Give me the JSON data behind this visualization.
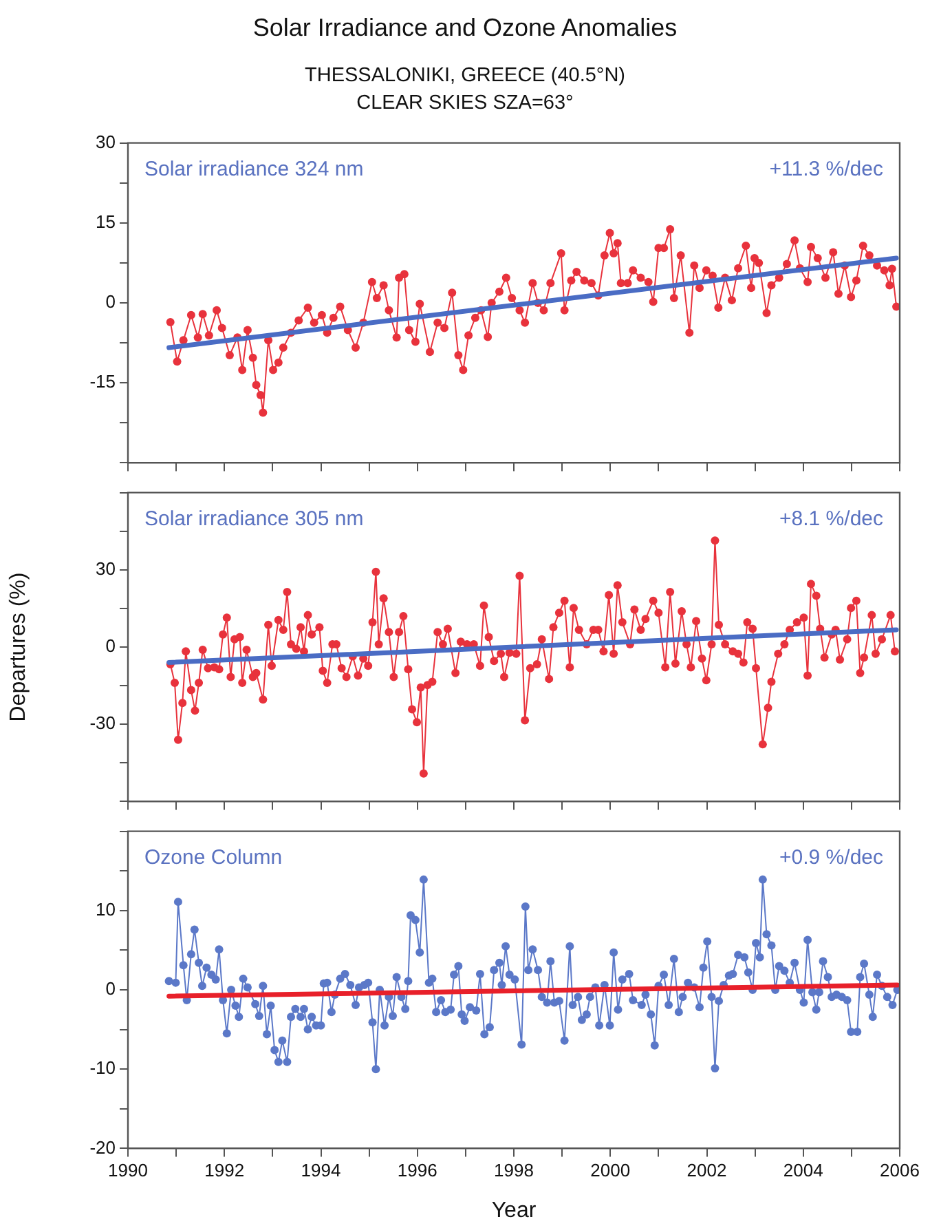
{
  "chart_data": [
    {
      "type": "line",
      "title": "Solar Irradiance and Ozone Anomalies",
      "subtitle": "THESSALONIKI, GREECE (40.5°N)\nCLEAR SKIES SZA=63°",
      "annotations": [
        "Solar irradiance 324 nm",
        "+11.3 %/dec"
      ],
      "xlim": [
        1990,
        2006
      ],
      "xticks": [
        1990,
        {
          "value": 1991,
          "label": null
        },
        1992,
        {
          "value": 1993,
          "label": null
        },
        1994,
        {
          "value": 1995,
          "label": null
        },
        1996,
        {
          "value": 1997,
          "label": null
        },
        1998,
        {
          "value": 1999,
          "label": null
        },
        2000,
        {
          "value": 2001,
          "label": null
        },
        2002,
        {
          "value": 2003,
          "label": null
        },
        2004,
        {
          "value": 2005,
          "label": null
        },
        2006
      ],
      "ylim": [
        -30,
        30
      ],
      "yticks": [
        30,
        {
          "value": 22.5,
          "label": null
        },
        15,
        {
          "value": 7.5,
          "label": null
        },
        0,
        {
          "value": -7.5,
          "label": null
        },
        -15,
        {
          "value": -22.5,
          "label": null
        },
        {
          "value": -30,
          "label": null
        }
      ],
      "tick_labels": "y",
      "grid": false,
      "legend": false,
      "marker": "circle",
      "series": [
        {
          "color": "#e8323c",
          "x": [
            1990.88,
            1991.02,
            1991.15,
            1991.31,
            1991.45,
            1991.55,
            1991.68,
            1991.84,
            1991.95,
            1992.11,
            1992.27,
            1992.37,
            1992.48,
            1992.59,
            1992.66,
            1992.75,
            1992.8,
            1992.91,
            1993.01,
            1993.12,
            1993.22,
            1993.38,
            1993.54,
            1993.73,
            1993.86,
            1994.02,
            1994.13,
            1994.26,
            1994.4,
            1994.56,
            1994.72,
            1994.88,
            1995.06,
            1995.16,
            1995.3,
            1995.41,
            1995.57,
            1995.62,
            1995.73,
            1995.83,
            1995.96,
            1996.05,
            1996.26,
            1996.42,
            1996.56,
            1996.72,
            1996.85,
            1996.95,
            1997.06,
            1997.2,
            1997.32,
            1997.46,
            1997.54,
            1997.7,
            1997.84,
            1997.96,
            1998.12,
            1998.23,
            1998.39,
            1998.5,
            1998.62,
            1998.76,
            1998.98,
            1999.05,
            1999.19,
            1999.3,
            1999.46,
            1999.61,
            1999.75,
            1999.88,
            1999.99,
            2000.07,
            2000.15,
            2000.22,
            2000.36,
            2000.47,
            2000.63,
            2000.79,
            2000.89,
            2001.0,
            2001.11,
            2001.24,
            2001.32,
            2001.46,
            2001.64,
            2001.74,
            2001.85,
            2001.99,
            2002.12,
            2002.24,
            2002.38,
            2002.52,
            2002.65,
            2002.81,
            2002.92,
            2002.99,
            2003.08,
            2003.24,
            2003.34,
            2003.5,
            2003.66,
            2003.82,
            2003.93,
            2004.09,
            2004.16,
            2004.3,
            2004.46,
            2004.62,
            2004.73,
            2004.86,
            2004.99,
            2005.1,
            2005.24,
            2005.37,
            2005.53,
            2005.68,
            2005.79,
            2005.84,
            2005.93
          ],
          "values": [
            -3.6,
            -11.0,
            -7.0,
            -2.3,
            -6.5,
            -2.1,
            -6.1,
            -1.4,
            -4.7,
            -9.8,
            -6.5,
            -12.6,
            -5.1,
            -10.3,
            -15.4,
            -17.3,
            -20.6,
            -7.0,
            -12.6,
            -11.2,
            -8.4,
            -5.6,
            -3.3,
            -0.9,
            -3.7,
            -2.3,
            -5.6,
            -2.8,
            -0.7,
            -5.1,
            -8.4,
            -3.7,
            3.9,
            0.9,
            3.3,
            -1.4,
            -6.5,
            4.7,
            5.4,
            -5.1,
            -7.3,
            -0.2,
            -9.2,
            -3.7,
            -4.7,
            1.9,
            -9.8,
            -12.6,
            -6.1,
            -2.8,
            -1.4,
            -6.4,
            0.0,
            2.1,
            4.7,
            0.9,
            -1.4,
            -3.7,
            3.7,
            0.0,
            -1.4,
            3.7,
            9.3,
            -1.4,
            4.2,
            5.8,
            4.2,
            3.7,
            1.4,
            8.9,
            13.1,
            9.3,
            11.2,
            3.7,
            3.7,
            6.1,
            4.7,
            3.9,
            0.2,
            10.3,
            10.3,
            13.8,
            0.9,
            8.9,
            -5.6,
            7.0,
            2.8,
            6.1,
            5.1,
            -0.9,
            4.7,
            0.5,
            6.5,
            10.7,
            2.8,
            8.4,
            7.5,
            -1.9,
            3.3,
            4.7,
            7.3,
            11.7,
            6.5,
            3.9,
            10.5,
            8.4,
            4.7,
            9.5,
            1.7,
            7.0,
            1.1,
            4.2,
            10.7,
            8.9,
            7.0,
            6.1,
            3.3,
            6.4,
            -0.7
          ]
        },
        {
          "type": "line",
          "marker": "none",
          "color": "#4a6cc4",
          "x": [
            1990.85,
            2005.93
          ],
          "values": [
            -8.4,
            8.4
          ]
        }
      ]
    },
    {
      "type": "line",
      "ylabel": "Departures (%)",
      "annotations": [
        "Solar irradiance 305 nm",
        "+8.1 %/dec"
      ],
      "xlim": [
        1990,
        2006
      ],
      "xticks": [
        1990,
        {
          "value": 1991,
          "label": null
        },
        1992,
        {
          "value": 1993,
          "label": null
        },
        1994,
        {
          "value": 1995,
          "label": null
        },
        1996,
        {
          "value": 1997,
          "label": null
        },
        1998,
        {
          "value": 1999,
          "label": null
        },
        2000,
        {
          "value": 2001,
          "label": null
        },
        2002,
        {
          "value": 2003,
          "label": null
        },
        2004,
        {
          "value": 2005,
          "label": null
        },
        2006
      ],
      "ylim": [
        -60,
        60
      ],
      "yticks": [
        {
          "value": 60,
          "label": null
        },
        {
          "value": 45,
          "label": null
        },
        30,
        {
          "value": 15,
          "label": null
        },
        0,
        {
          "value": -15,
          "label": null
        },
        -30,
        {
          "value": -45,
          "label": null
        },
        {
          "value": -60,
          "label": null
        }
      ],
      "tick_labels": "y",
      "grid": false,
      "legend": false,
      "marker": "circle",
      "series": [
        {
          "color": "#e8323c",
          "x": [
            1990.88,
            1990.97,
            1991.04,
            1991.13,
            1991.2,
            1991.31,
            1991.39,
            1991.47,
            1991.55,
            1991.66,
            1991.79,
            1991.89,
            1991.97,
            1992.05,
            1992.13,
            1992.21,
            1992.32,
            1992.37,
            1992.46,
            1992.59,
            1992.66,
            1992.8,
            1992.91,
            1992.98,
            1993.12,
            1993.22,
            1993.3,
            1993.38,
            1993.49,
            1993.58,
            1993.65,
            1993.73,
            1993.81,
            1993.97,
            1994.04,
            1994.13,
            1994.24,
            1994.32,
            1994.43,
            1994.53,
            1994.66,
            1994.77,
            1994.88,
            1994.98,
            1995.07,
            1995.14,
            1995.2,
            1995.3,
            1995.41,
            1995.51,
            1995.62,
            1995.71,
            1995.81,
            1995.89,
            1995.99,
            1996.07,
            1996.13,
            1996.21,
            1996.31,
            1996.42,
            1996.53,
            1996.63,
            1996.79,
            1996.9,
            1997.03,
            1997.17,
            1997.3,
            1997.38,
            1997.48,
            1997.59,
            1997.73,
            1997.8,
            1997.91,
            1998.05,
            1998.12,
            1998.23,
            1998.34,
            1998.48,
            1998.58,
            1998.73,
            1998.82,
            1998.94,
            1999.05,
            1999.16,
            1999.24,
            1999.35,
            1999.51,
            1999.65,
            1999.75,
            1999.86,
            1999.97,
            2000.07,
            2000.15,
            2000.25,
            2000.41,
            2000.5,
            2000.63,
            2000.73,
            2000.89,
            2001.0,
            2001.14,
            2001.24,
            2001.35,
            2001.48,
            2001.58,
            2001.67,
            2001.78,
            2001.9,
            2001.99,
            2002.1,
            2002.17,
            2002.25,
            2002.38,
            2002.54,
            2002.65,
            2002.76,
            2002.84,
            2002.95,
            2003.02,
            2003.16,
            2003.27,
            2003.34,
            2003.48,
            2003.61,
            2003.72,
            2003.87,
            2004.01,
            2004.09,
            2004.16,
            2004.27,
            2004.35,
            2004.44,
            2004.59,
            2004.67,
            2004.76,
            2004.91,
            2004.99,
            2005.1,
            2005.18,
            2005.26,
            2005.42,
            2005.5,
            2005.63,
            2005.81,
            2005.9
          ],
          "values": [
            -6.7,
            -13.9,
            -36.0,
            -21.7,
            -1.7,
            -16.7,
            -24.7,
            -13.9,
            -1.1,
            -8.2,
            -7.9,
            -8.6,
            4.9,
            11.4,
            -11.6,
            3.0,
            3.9,
            -13.9,
            -1.1,
            -11.6,
            -10.1,
            -20.4,
            8.6,
            -7.3,
            10.5,
            6.7,
            21.4,
            1.1,
            -0.7,
            7.7,
            -1.7,
            12.4,
            4.9,
            7.7,
            -9.2,
            -13.9,
            1.1,
            1.1,
            -8.2,
            -11.6,
            -3.6,
            -11.1,
            -4.5,
            -7.3,
            9.6,
            29.2,
            1.1,
            18.9,
            5.8,
            -11.6,
            5.8,
            12.0,
            -8.6,
            -24.2,
            -29.2,
            -15.7,
            -49.1,
            -14.8,
            -13.5,
            5.8,
            1.1,
            7.1,
            -10.1,
            2.1,
            1.1,
            1.1,
            -7.3,
            16.1,
            3.9,
            -5.4,
            -2.6,
            -11.6,
            -2.2,
            -2.6,
            27.7,
            -28.5,
            -8.2,
            -6.7,
            3.0,
            -12.4,
            7.7,
            13.3,
            18.0,
            -7.9,
            15.2,
            6.7,
            1.1,
            6.7,
            6.7,
            -1.7,
            20.2,
            -2.6,
            24.0,
            9.6,
            1.1,
            14.6,
            6.7,
            10.9,
            18.0,
            13.3,
            -7.9,
            21.4,
            -6.4,
            13.9,
            1.1,
            -7.9,
            10.1,
            -4.5,
            -12.9,
            1.1,
            41.4,
            8.6,
            1.1,
            -1.7,
            -2.6,
            -6.0,
            9.6,
            7.1,
            -8.2,
            -37.8,
            -23.6,
            -13.5,
            -2.6,
            1.1,
            6.7,
            9.6,
            11.4,
            -11.1,
            24.5,
            19.9,
            7.1,
            -4.1,
            4.9,
            6.7,
            -4.9,
            3.0,
            15.2,
            18.0,
            -10.1,
            -4.1,
            12.4,
            -2.6,
            3.0,
            12.4,
            -1.7
          ]
        },
        {
          "type": "line",
          "marker": "none",
          "color": "#4a6cc4",
          "x": [
            1990.85,
            2005.93
          ],
          "values": [
            -6.0,
            6.7
          ]
        }
      ]
    },
    {
      "type": "line",
      "xlabel": "Year",
      "annotations": [
        "Ozone Column",
        "+0.9 %/dec"
      ],
      "xlim": [
        1990,
        2006
      ],
      "xticks": [
        1990,
        {
          "value": 1991,
          "label": null
        },
        1992,
        {
          "value": 1993,
          "label": null
        },
        1994,
        {
          "value": 1995,
          "label": null
        },
        1996,
        {
          "value": 1997,
          "label": null
        },
        1998,
        {
          "value": 1999,
          "label": null
        },
        2000,
        {
          "value": 2001,
          "label": null
        },
        2002,
        {
          "value": 2003,
          "label": null
        },
        2004,
        {
          "value": 2005,
          "label": null
        },
        2006
      ],
      "ylim": [
        -20,
        20
      ],
      "yticks": [
        {
          "value": 20,
          "label": null
        },
        {
          "value": 15,
          "label": null
        },
        10,
        {
          "value": 5,
          "label": null
        },
        0,
        {
          "value": -5,
          "label": null
        },
        -10,
        {
          "value": -15,
          "label": null
        },
        -20
      ],
      "grid": false,
      "legend": false,
      "marker": "circle",
      "series": [
        {
          "color": "#5b78c8",
          "x": [
            1990.85,
            1990.99,
            1991.04,
            1991.15,
            1991.22,
            1991.31,
            1991.38,
            1991.47,
            1991.54,
            1991.63,
            1991.73,
            1991.82,
            1991.89,
            1991.97,
            1992.05,
            1992.14,
            1992.23,
            1992.3,
            1992.39,
            1992.48,
            1992.64,
            1992.72,
            1992.8,
            1992.88,
            1992.96,
            1993.04,
            1993.12,
            1993.2,
            1993.3,
            1993.38,
            1993.47,
            1993.58,
            1993.65,
            1993.73,
            1993.81,
            1993.9,
            1994.0,
            1994.06,
            1994.13,
            1994.22,
            1994.29,
            1994.4,
            1994.5,
            1994.61,
            1994.72,
            1994.79,
            1994.9,
            1994.98,
            1995.07,
            1995.14,
            1995.22,
            1995.32,
            1995.41,
            1995.49,
            1995.57,
            1995.67,
            1995.75,
            1995.81,
            1995.86,
            1995.96,
            1996.05,
            1996.13,
            1996.24,
            1996.31,
            1996.39,
            1996.49,
            1996.58,
            1996.69,
            1996.76,
            1996.85,
            1996.92,
            1996.98,
            1997.09,
            1997.22,
            1997.3,
            1997.39,
            1997.5,
            1997.59,
            1997.7,
            1997.75,
            1997.83,
            1997.91,
            1998.02,
            1998.16,
            1998.24,
            1998.3,
            1998.39,
            1998.5,
            1998.58,
            1998.69,
            1998.76,
            1998.84,
            1998.94,
            1999.05,
            1999.16,
            1999.22,
            1999.33,
            1999.41,
            1999.51,
            1999.58,
            1999.69,
            1999.77,
            1999.88,
            1999.99,
            2000.07,
            2000.16,
            2000.25,
            2000.39,
            2000.47,
            2000.65,
            2000.73,
            2000.84,
            2000.92,
            2001.0,
            2001.11,
            2001.21,
            2001.32,
            2001.42,
            2001.5,
            2001.61,
            2001.74,
            2001.85,
            2001.93,
            2002.01,
            2002.1,
            2002.17,
            2002.25,
            2002.35,
            2002.46,
            2002.54,
            2002.65,
            2002.78,
            2002.86,
            2002.95,
            2003.02,
            2003.1,
            2003.16,
            2003.24,
            2003.34,
            2003.42,
            2003.5,
            2003.61,
            2003.72,
            2003.82,
            2003.93,
            2004.01,
            2004.09,
            2004.19,
            2004.27,
            2004.33,
            2004.41,
            2004.51,
            2004.59,
            2004.69,
            2004.8,
            2004.91,
            2004.99,
            2005.12,
            2005.18,
            2005.26,
            2005.37,
            2005.44,
            2005.53,
            2005.63,
            2005.74,
            2005.85,
            2005.95
          ],
          "values": [
            1.1,
            0.9,
            11.1,
            3.1,
            -1.3,
            4.5,
            7.6,
            3.4,
            0.5,
            2.8,
            1.9,
            1.3,
            5.1,
            -1.3,
            -5.5,
            0.0,
            -2.0,
            -3.4,
            1.4,
            0.3,
            -1.8,
            -3.3,
            0.5,
            -5.6,
            -2.0,
            -7.6,
            -9.1,
            -6.4,
            -9.1,
            -3.4,
            -2.4,
            -3.4,
            -2.4,
            -5.0,
            -3.4,
            -4.5,
            -4.5,
            0.8,
            0.9,
            -2.8,
            -0.6,
            1.4,
            2.0,
            0.6,
            -1.9,
            0.3,
            0.6,
            0.9,
            -4.1,
            -10.0,
            0.0,
            -4.5,
            -0.9,
            -3.3,
            1.6,
            -0.9,
            -2.4,
            1.1,
            9.4,
            8.8,
            4.7,
            13.9,
            0.9,
            1.4,
            -2.8,
            -1.3,
            -2.8,
            -2.5,
            1.9,
            3.0,
            -3.1,
            -3.9,
            -2.2,
            -2.6,
            2.0,
            -5.6,
            -4.7,
            2.5,
            3.4,
            0.6,
            5.5,
            1.9,
            1.3,
            -6.9,
            10.5,
            2.5,
            5.1,
            2.5,
            -0.9,
            -1.6,
            3.6,
            -1.6,
            -1.4,
            -6.4,
            5.5,
            -1.9,
            -0.9,
            -3.8,
            -3.1,
            -0.9,
            0.3,
            -4.5,
            0.6,
            -4.5,
            4.7,
            -2.5,
            1.3,
            2.0,
            -1.3,
            -1.9,
            -0.6,
            -3.1,
            -7.0,
            0.5,
            1.9,
            -1.9,
            3.9,
            -2.8,
            -0.9,
            0.9,
            0.3,
            -2.2,
            2.8,
            6.1,
            -0.9,
            -9.9,
            -1.4,
            0.6,
            1.8,
            2.0,
            4.4,
            4.1,
            2.2,
            0.0,
            5.9,
            4.1,
            13.9,
            7.0,
            5.6,
            0.0,
            3.0,
            2.4,
            0.9,
            3.4,
            0.0,
            -1.6,
            6.3,
            -0.3,
            -2.5,
            -0.3,
            3.6,
            1.6,
            -0.9,
            -0.6,
            -0.9,
            -1.3,
            -5.3,
            -5.3,
            1.6,
            3.3,
            -0.6,
            -3.4,
            1.9,
            0.5,
            -0.9,
            -1.9,
            0.0
          ]
        },
        {
          "type": "line",
          "marker": "none",
          "color": "#e8202a",
          "x": [
            1990.85,
            2005.95
          ],
          "values": [
            -0.8,
            0.6
          ]
        }
      ]
    }
  ]
}
